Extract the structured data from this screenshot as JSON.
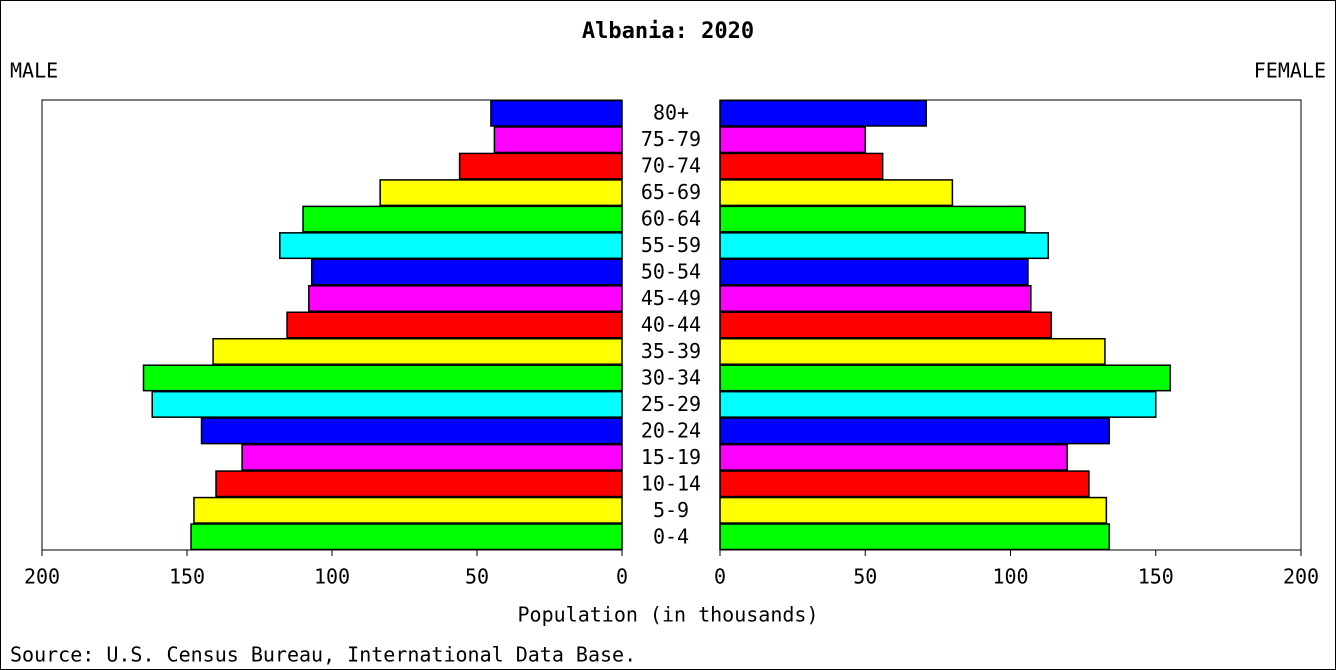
{
  "chart_data": {
    "type": "pyramid",
    "title": "Albania: 2020",
    "categories": [
      "0-4",
      "5-9",
      "10-14",
      "15-19",
      "20-24",
      "25-29",
      "30-34",
      "35-39",
      "40-44",
      "45-49",
      "50-54",
      "55-59",
      "60-64",
      "65-69",
      "70-74",
      "75-79",
      "80+"
    ],
    "bar_colors": [
      "#00ff00",
      "#ffff00",
      "#ff0000",
      "#ff00ff",
      "#0000ff",
      "#00ffff",
      "#00ff00",
      "#ffff00",
      "#ff0000",
      "#ff00ff",
      "#0000ff",
      "#00ffff",
      "#00ff00",
      "#ffff00",
      "#ff0000",
      "#ff00ff",
      "#0000ff"
    ],
    "series": [
      {
        "name": "MALE",
        "values": [
          148.6,
          147.6,
          140,
          131,
          145,
          162,
          165,
          141,
          115.5,
          108,
          107,
          118,
          110,
          83.4,
          56,
          44,
          45.2
        ]
      },
      {
        "name": "FEMALE",
        "values": [
          134,
          133,
          127,
          119.5,
          134,
          150,
          155,
          132.5,
          114,
          107,
          106,
          113,
          105,
          80,
          56,
          50,
          71
        ]
      }
    ],
    "xlim": [
      0,
      200
    ],
    "xticks": [
      0,
      50,
      100,
      150,
      200
    ],
    "xlabel": "Population (in thousands)",
    "source": "Source: U.S. Census Bureau, International Data Base."
  }
}
